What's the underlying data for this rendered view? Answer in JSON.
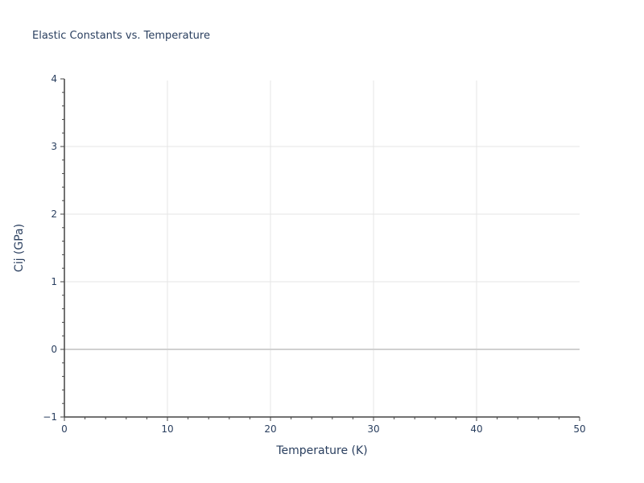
{
  "page": {
    "background": "#ffffff"
  },
  "chart": {
    "title": "Elastic Constants vs. Temperature",
    "colors": {
      "text": "#2a3f5f",
      "grid": "#e6e6e6",
      "zeroline": "#d0d0d0",
      "axis_line": "#444444",
      "tick": "#444444",
      "plot_bg": "#ffffff"
    }
  },
  "chart_data": {
    "type": "scatter",
    "title": "Elastic Constants vs. Temperature",
    "xlabel": "Temperature (K)",
    "ylabel": "Cij (GPa)",
    "xlim": [
      0,
      50
    ],
    "ylim": [
      -1,
      4
    ],
    "xticks": [
      0,
      10,
      20,
      30,
      40,
      50
    ],
    "yticks": [
      -1,
      0,
      1,
      2,
      3,
      4
    ],
    "x_minor_step": 2,
    "y_minor_step": 0.2,
    "grid": true,
    "zeroline": true,
    "legend": "none",
    "series": []
  }
}
